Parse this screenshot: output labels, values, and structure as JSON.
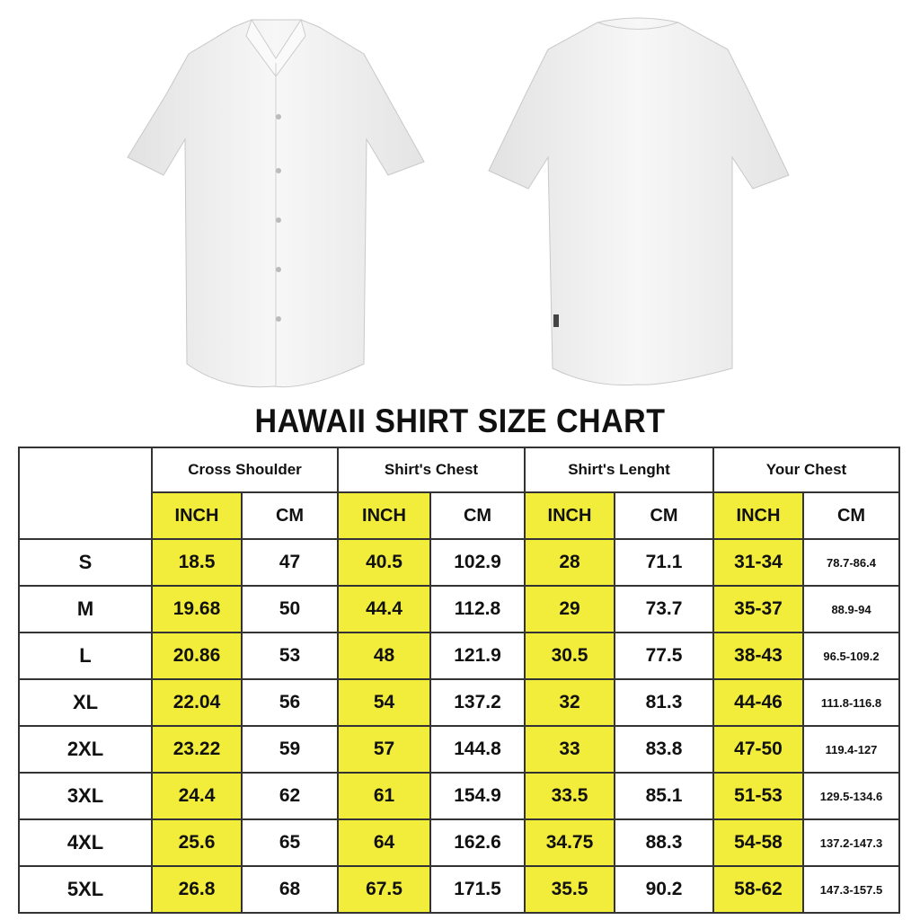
{
  "title": "HAWAII SHIRT SIZE CHART",
  "colors": {
    "highlight": "#f2ec3a",
    "border": "#333333",
    "shirt": "#f3f3f3"
  },
  "images": [
    "front-shirt-image",
    "back-shirt-image"
  ],
  "groups": [
    "Cross Shoulder",
    "Shirt's Chest",
    "Shirt's Lenght",
    "Your Chest"
  ],
  "units": [
    "INCH",
    "CM"
  ],
  "rows": [
    {
      "size": "S",
      "values": [
        "18.5",
        "47",
        "40.5",
        "102.9",
        "28",
        "71.1",
        "31-34",
        "78.7-86.4"
      ]
    },
    {
      "size": "M",
      "values": [
        "19.68",
        "50",
        "44.4",
        "112.8",
        "29",
        "73.7",
        "35-37",
        "88.9-94"
      ]
    },
    {
      "size": "L",
      "values": [
        "20.86",
        "53",
        "48",
        "121.9",
        "30.5",
        "77.5",
        "38-43",
        "96.5-109.2"
      ]
    },
    {
      "size": "XL",
      "values": [
        "22.04",
        "56",
        "54",
        "137.2",
        "32",
        "81.3",
        "44-46",
        "111.8-116.8"
      ]
    },
    {
      "size": "2XL",
      "values": [
        "23.22",
        "59",
        "57",
        "144.8",
        "33",
        "83.8",
        "47-50",
        "119.4-127"
      ]
    },
    {
      "size": "3XL",
      "values": [
        "24.4",
        "62",
        "61",
        "154.9",
        "33.5",
        "85.1",
        "51-53",
        "129.5-134.6"
      ]
    },
    {
      "size": "4XL",
      "values": [
        "25.6",
        "65",
        "64",
        "162.6",
        "34.75",
        "88.3",
        "54-58",
        "137.2-147.3"
      ]
    },
    {
      "size": "5XL",
      "values": [
        "26.8",
        "68",
        "67.5",
        "171.5",
        "35.5",
        "90.2",
        "58-62",
        "147.3-157.5"
      ]
    }
  ]
}
